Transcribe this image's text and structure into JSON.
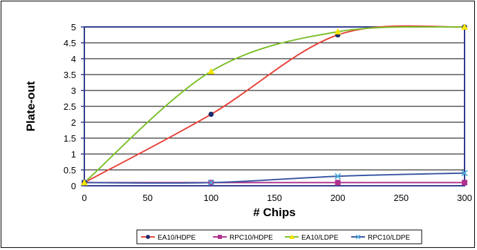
{
  "chart_data": {
    "type": "line",
    "title": "",
    "xlabel": "# Chips",
    "ylabel": "Plate-out",
    "xlim": [
      0,
      300
    ],
    "ylim": [
      0,
      5
    ],
    "x_ticks": [
      0,
      50,
      100,
      150,
      200,
      250,
      300
    ],
    "y_ticks": [
      0,
      0.5,
      1,
      1.5,
      2,
      2.5,
      3,
      3.5,
      4,
      4.5,
      5
    ],
    "grid": true,
    "legend_position": "bottom",
    "series": [
      {
        "name": "EA10/HDPE",
        "color": "#e8433a",
        "marker": "circle",
        "marker_color": "#1a2a6c",
        "points": [
          [
            0,
            0.1
          ],
          [
            100,
            2.25
          ],
          [
            200,
            4.75
          ],
          [
            300,
            5.0
          ]
        ]
      },
      {
        "name": "RPC10/HDPE",
        "color": "#b0308f",
        "marker": "square",
        "marker_color": "#b0308f",
        "points": [
          [
            0,
            0.1
          ],
          [
            100,
            0.1
          ],
          [
            200,
            0.1
          ],
          [
            300,
            0.1
          ]
        ]
      },
      {
        "name": "EA10/LDPE",
        "color": "#7cbf2a",
        "marker": "triangle",
        "marker_color": "#f5e400",
        "points": [
          [
            0,
            0.1
          ],
          [
            100,
            3.6
          ],
          [
            200,
            4.85
          ],
          [
            300,
            5.0
          ]
        ]
      },
      {
        "name": "RPC10/LDPE",
        "color": "#3a55a3",
        "marker": "x",
        "marker_color": "#4ab0e0",
        "points": [
          [
            0,
            0.1
          ],
          [
            100,
            0.1
          ],
          [
            200,
            0.3
          ],
          [
            300,
            0.4
          ]
        ]
      }
    ]
  }
}
